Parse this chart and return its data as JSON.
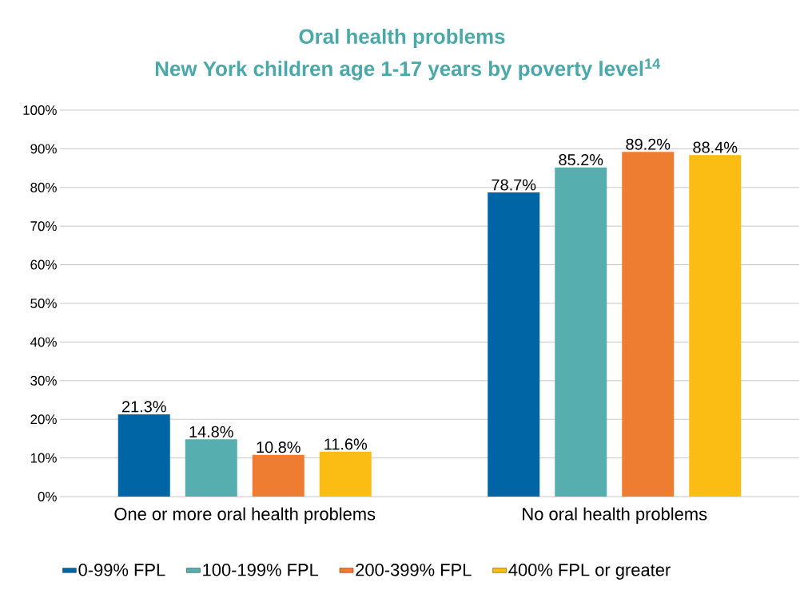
{
  "chart_data": {
    "type": "bar",
    "title": "Oral health problems",
    "subtitle": "New York children age 1-17 years by poverty level$^{14}$",
    "categories": [
      "One or more oral health problems",
      "No oral health problems"
    ],
    "series": [
      {
        "name": "0-99% FPL",
        "color": "#0065a5",
        "values": [
          21.3,
          78.7
        ],
        "value_labels": [
          "21.3%",
          "78.7%"
        ]
      },
      {
        "name": "100-199% FPL",
        "color": "#56aeae",
        "values": [
          14.8,
          85.2
        ],
        "value_labels": [
          "14.8%",
          "85.2%"
        ]
      },
      {
        "name": "200-399% FPL",
        "color": "#ef7d31",
        "values": [
          10.8,
          89.2
        ],
        "value_labels": [
          "10.8%",
          "89.2%"
        ]
      },
      {
        "name": "400% FPL or greater",
        "color": "#fbbd14",
        "values": [
          11.6,
          88.4
        ],
        "value_labels": [
          "11.6%",
          "88.4%"
        ]
      }
    ],
    "ylim": [
      0,
      100
    ],
    "yticks": [
      {
        "value": 0,
        "label": "0%"
      },
      {
        "value": 10,
        "label": "10%"
      },
      {
        "value": 20,
        "label": "20%"
      },
      {
        "value": 30,
        "label": "30%"
      },
      {
        "value": 40,
        "label": "40%"
      },
      {
        "value": 50,
        "label": "50%"
      },
      {
        "value": 60,
        "label": "60%"
      },
      {
        "value": 70,
        "label": "70%"
      },
      {
        "value": 80,
        "label": "80%"
      },
      {
        "value": 90,
        "label": "90%"
      },
      {
        "value": 100,
        "label": "100%"
      }
    ],
    "grid": "y",
    "legend": "bottom"
  }
}
